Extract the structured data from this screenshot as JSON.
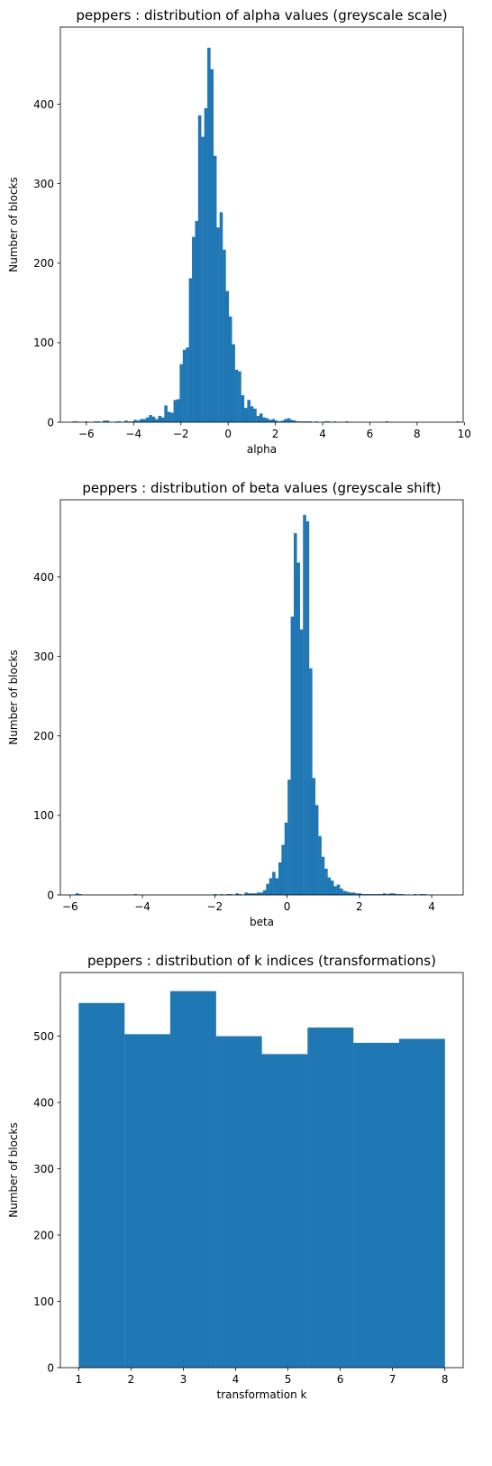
{
  "chart_data": [
    {
      "type": "bar",
      "title": "peppers : distribution of alpha values (greyscale scale)",
      "xlabel": "alpha",
      "ylabel": "Number of blocks",
      "xlim": [
        -7.1,
        9.95
      ],
      "ylim": [
        0,
        497
      ],
      "xticks": [
        -6,
        -4,
        -2,
        0,
        2,
        4,
        6,
        8,
        10
      ],
      "yticks": [
        0,
        100,
        200,
        300,
        400
      ],
      "bin_start": -6.6,
      "bin_width": 0.13,
      "color": "#1f77b4",
      "values": [
        1,
        1,
        0,
        0,
        1,
        0,
        0,
        1,
        1,
        0,
        2,
        2,
        0,
        0,
        1,
        1,
        0,
        2,
        1,
        1,
        3,
        2,
        4,
        4,
        6,
        9,
        7,
        4,
        8,
        6,
        21,
        13,
        12,
        28,
        29,
        73,
        91,
        94,
        181,
        233,
        253,
        386,
        359,
        395,
        471,
        444,
        335,
        245,
        264,
        217,
        165,
        133,
        98,
        66,
        64,
        34,
        18,
        28,
        20,
        17,
        8,
        11,
        6,
        5,
        3,
        4,
        2,
        1,
        2,
        4,
        5,
        3,
        2,
        1,
        1,
        1,
        1,
        1,
        0,
        1,
        0,
        0,
        1,
        1,
        0,
        1,
        0,
        0,
        0,
        1,
        0,
        0,
        0,
        0,
        0,
        0,
        0,
        0,
        0,
        0,
        0,
        0,
        1,
        0,
        0,
        0,
        0,
        0,
        0,
        0,
        0,
        0,
        0,
        0,
        0,
        0,
        0,
        0,
        0,
        0,
        0,
        0,
        0,
        0,
        0,
        1
      ]
    },
    {
      "type": "bar",
      "title": "peppers : distribution of beta values (greyscale shift)",
      "xlabel": "beta",
      "ylabel": "Number of blocks",
      "xlim": [
        -6.27,
        4.87
      ],
      "ylim": [
        0,
        497
      ],
      "xticks": [
        -6,
        -4,
        -2,
        0,
        2,
        4
      ],
      "yticks": [
        0,
        100,
        200,
        300,
        400
      ],
      "bin_start": -5.85,
      "bin_width": 0.085,
      "color": "#1f77b4",
      "values": [
        2,
        1,
        0,
        0,
        0,
        0,
        0,
        0,
        0,
        0,
        0,
        0,
        0,
        0,
        0,
        0,
        0,
        0,
        0,
        1,
        0,
        0,
        0,
        0,
        0,
        0,
        0,
        0,
        0,
        0,
        0,
        0,
        0,
        0,
        0,
        0,
        0,
        0,
        0,
        0,
        0,
        0,
        0,
        0,
        0,
        1,
        0,
        1,
        0,
        1,
        1,
        0,
        2,
        1,
        0,
        3,
        2,
        2,
        2,
        3,
        3,
        6,
        14,
        21,
        29,
        21,
        41,
        63,
        91,
        145,
        350,
        455,
        418,
        334,
        478,
        470,
        285,
        147,
        113,
        74,
        48,
        33,
        22,
        18,
        11,
        13,
        8,
        5,
        4,
        3,
        3,
        2,
        2,
        1,
        1,
        1,
        1,
        1,
        1,
        1,
        2,
        1,
        2,
        2,
        1,
        1,
        1,
        0,
        0,
        0,
        1,
        0,
        1,
        1
      ]
    },
    {
      "type": "bar",
      "title": "peppers : distribution of k indices (transformations)",
      "xlabel": "transformation k",
      "ylabel": "Number of blocks",
      "xlim": [
        0.65,
        8.35
      ],
      "ylim": [
        0,
        596
      ],
      "xticks": [
        1,
        2,
        3,
        4,
        5,
        6,
        7,
        8
      ],
      "yticks": [
        0,
        100,
        200,
        300,
        400,
        500
      ],
      "bin_start": 1,
      "bin_width": 0.875,
      "color": "#1f77b4",
      "values": [
        550,
        503,
        568,
        500,
        473,
        513,
        490,
        496
      ]
    }
  ]
}
